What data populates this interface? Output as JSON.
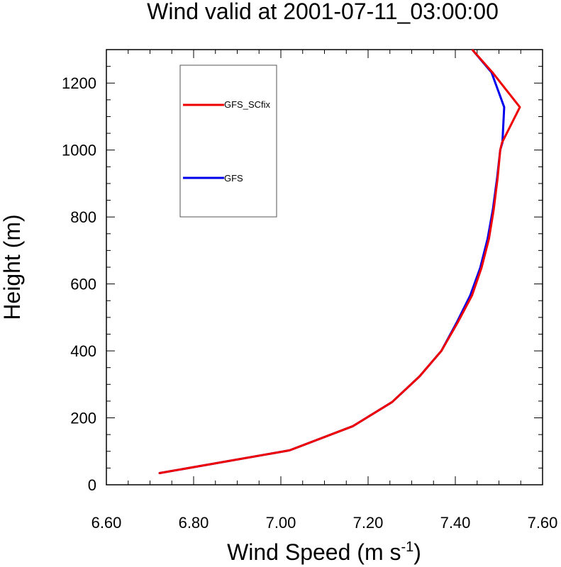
{
  "chart_data": {
    "type": "line",
    "title": "Wind valid at 2001-07-11_03:00:00",
    "xlabel": "Wind Speed (m s",
    "xlabel_superscript": "-1",
    "xlabel_suffix": ")",
    "ylabel": "Height (m)",
    "xlim": [
      6.6,
      7.6
    ],
    "ylim": [
      0,
      1300
    ],
    "x_ticks": [
      "6.60",
      "6.80",
      "7.00",
      "7.20",
      "7.40",
      "7.60"
    ],
    "y_ticks": [
      "0",
      "200",
      "400",
      "600",
      "800",
      "1000",
      "1200"
    ],
    "legend_placement": "top-left",
    "grid": false,
    "series": [
      {
        "name": "GFS_SCfix",
        "color": "#ee0000",
        "x": [
          6.722,
          7.02,
          7.165,
          7.255,
          7.318,
          7.368,
          7.405,
          7.438,
          7.46,
          7.477,
          7.488,
          7.497,
          7.503,
          7.507,
          7.548,
          7.485,
          7.44
        ],
        "y": [
          35,
          103,
          175,
          247,
          324,
          400,
          484,
          565,
          648,
          735,
          822,
          918,
          1000,
          1022,
          1128,
          1232,
          1298
        ]
      },
      {
        "name": "GFS",
        "color": "#0000ee",
        "x": [
          6.722,
          7.02,
          7.165,
          7.255,
          7.318,
          7.368,
          7.403,
          7.434,
          7.457,
          7.474,
          7.486,
          7.496,
          7.503,
          7.508,
          7.512,
          7.483,
          7.44
        ],
        "y": [
          35,
          103,
          175,
          247,
          324,
          400,
          484,
          565,
          648,
          735,
          822,
          918,
          1000,
          1022,
          1128,
          1232,
          1298
        ]
      }
    ]
  }
}
